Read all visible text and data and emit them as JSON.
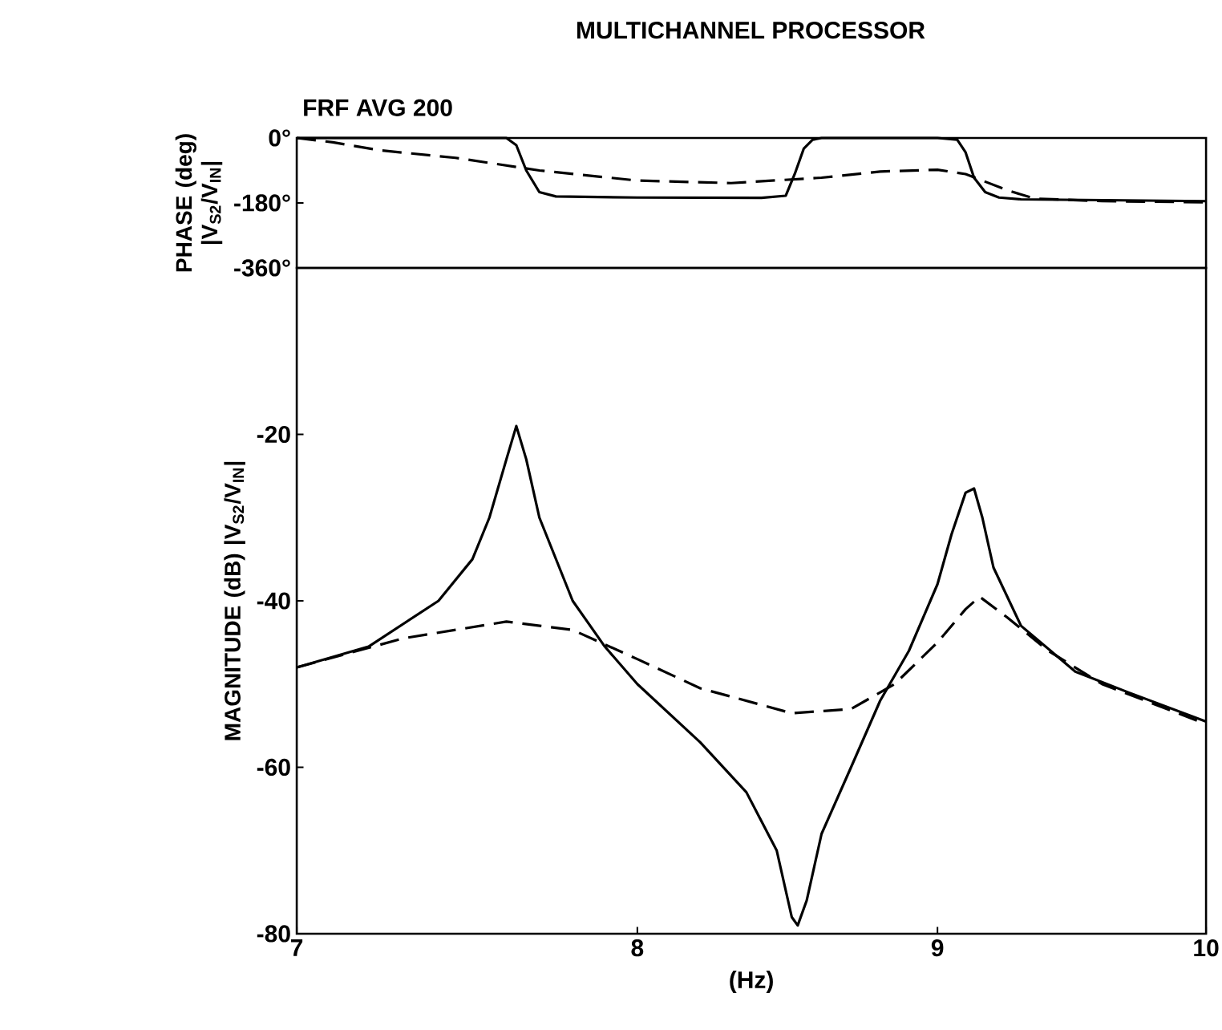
{
  "chart_data": [
    {
      "type": "line",
      "title": "MULTICHANNEL PROCESSOR",
      "subtitle": "FRF AVG 200",
      "ylabel": "PHASE (deg) |V$_{S2}$/V$_{IN}$|",
      "log": "x",
      "tick_labels": "y",
      "xlim": [
        7,
        10
      ],
      "ylim": [
        -360,
        0
      ],
      "yticks": [
        {
          "value": 0,
          "label": "0°"
        },
        {
          "value": -180,
          "label": "-180°"
        },
        {
          "value": -360,
          "label": "-360°"
        }
      ],
      "series": [
        {
          "color": "#000000",
          "line_style": "solid",
          "x": [
            7.0,
            7.6,
            7.63,
            7.66,
            7.7,
            7.75,
            8.0,
            8.4,
            8.48,
            8.51,
            8.54,
            8.57,
            8.6,
            9.0,
            9.07,
            9.1,
            9.13,
            9.17,
            9.22,
            9.3,
            10.0
          ],
          "values": [
            0,
            0,
            -20,
            -90,
            -150,
            -162,
            -165,
            -166,
            -160,
            -100,
            -30,
            -5,
            0,
            0,
            -5,
            -40,
            -110,
            -150,
            -165,
            -170,
            -175
          ]
        },
        {
          "color": "#000000",
          "line_style": "dashed",
          "x": [
            7.0,
            7.1,
            7.23,
            7.45,
            7.7,
            8.0,
            8.3,
            8.6,
            8.8,
            9.0,
            9.1,
            9.15,
            9.25,
            9.35,
            9.6,
            10.0
          ],
          "values": [
            0,
            -12,
            -34,
            -55,
            -90,
            -118,
            -125,
            -110,
            -93,
            -88,
            -100,
            -115,
            -145,
            -168,
            -175,
            -178
          ]
        }
      ]
    },
    {
      "type": "line",
      "xlabel": "(Hz)",
      "ylabel": "MAGNITUDE (dB) |V$_{S2}$/V$_{IN}$|",
      "log": "x",
      "xlim": [
        7,
        10
      ],
      "ylim": [
        -80,
        0
      ],
      "xticks": [
        7,
        8,
        9,
        10
      ],
      "yticks": [
        -80,
        -60,
        -40,
        -20
      ],
      "series": [
        {
          "color": "#000000",
          "line_style": "solid",
          "x": [
            7.0,
            7.2,
            7.4,
            7.5,
            7.55,
            7.6,
            7.63,
            7.66,
            7.7,
            7.8,
            7.9,
            8.0,
            8.2,
            8.35,
            8.45,
            8.5,
            8.52,
            8.55,
            8.6,
            8.7,
            8.8,
            8.9,
            9.0,
            9.05,
            9.1,
            9.13,
            9.16,
            9.2,
            9.3,
            9.5,
            9.7,
            10.0
          ],
          "values": [
            -48,
            -45.5,
            -40,
            -35,
            -30,
            -23,
            -19,
            -23,
            -30,
            -40,
            -45.5,
            -50,
            -57,
            -63,
            -70,
            -78,
            -79,
            -76,
            -68,
            -60,
            -52,
            -46,
            -38,
            -32,
            -27,
            -26.5,
            -30,
            -36,
            -43,
            -48.5,
            -51,
            -54.5
          ]
        },
        {
          "color": "#000000",
          "line_style": "dashed",
          "x": [
            7.0,
            7.3,
            7.6,
            7.8,
            8.0,
            8.2,
            8.5,
            8.7,
            8.85,
            9.0,
            9.1,
            9.15,
            9.25,
            9.4,
            9.6,
            10.0
          ],
          "values": [
            -48,
            -44.5,
            -42.5,
            -43.5,
            -47,
            -50.5,
            -53.5,
            -53,
            -50,
            -45,
            -41,
            -39.5,
            -42,
            -46,
            -50,
            -54.8
          ]
        }
      ]
    }
  ]
}
